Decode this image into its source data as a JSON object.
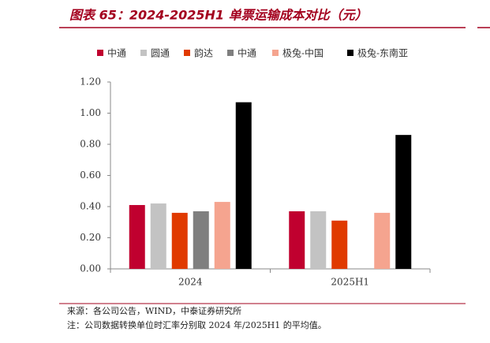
{
  "chart_data": {
    "type": "bar",
    "title": "图表 65：2024-2025H1 单票运输成本对比（元）",
    "categories": [
      "2024",
      "2025H1"
    ],
    "series": [
      {
        "name": "中通",
        "color": "#c0002f",
        "values": [
          0.41,
          0.37
        ]
      },
      {
        "name": "圆通",
        "color": "#c3c3c3",
        "values": [
          0.42,
          0.37
        ]
      },
      {
        "name": "韵达",
        "color": "#e03a00",
        "values": [
          0.36,
          0.31
        ]
      },
      {
        "name": "中通",
        "color": "#7f7f7f",
        "values": [
          0.37,
          null
        ]
      },
      {
        "name": "极兔-中国",
        "color": "#f5a48f",
        "values": [
          0.43,
          0.36
        ]
      },
      {
        "name": "极兔-东南亚",
        "color": "#000000",
        "values": [
          1.07,
          0.86
        ]
      }
    ],
    "ylim": [
      0,
      1.2
    ],
    "yticks": [
      {
        "value": 0,
        "label": "0.00"
      },
      {
        "value": 0.2,
        "label": "0.20"
      },
      {
        "value": 0.4,
        "label": "0.40"
      },
      {
        "value": 0.6,
        "label": "0.60"
      },
      {
        "value": 0.8,
        "label": "0.80"
      },
      {
        "value": 1.0,
        "label": "1.00"
      },
      {
        "value": 1.2,
        "label": "1.20"
      }
    ],
    "source": "来源：各公司公告，WIND，中泰证券研究所",
    "note": "注：公司数据转换单位时汇率分别取 2024 年/2025H1 的平均值。"
  }
}
